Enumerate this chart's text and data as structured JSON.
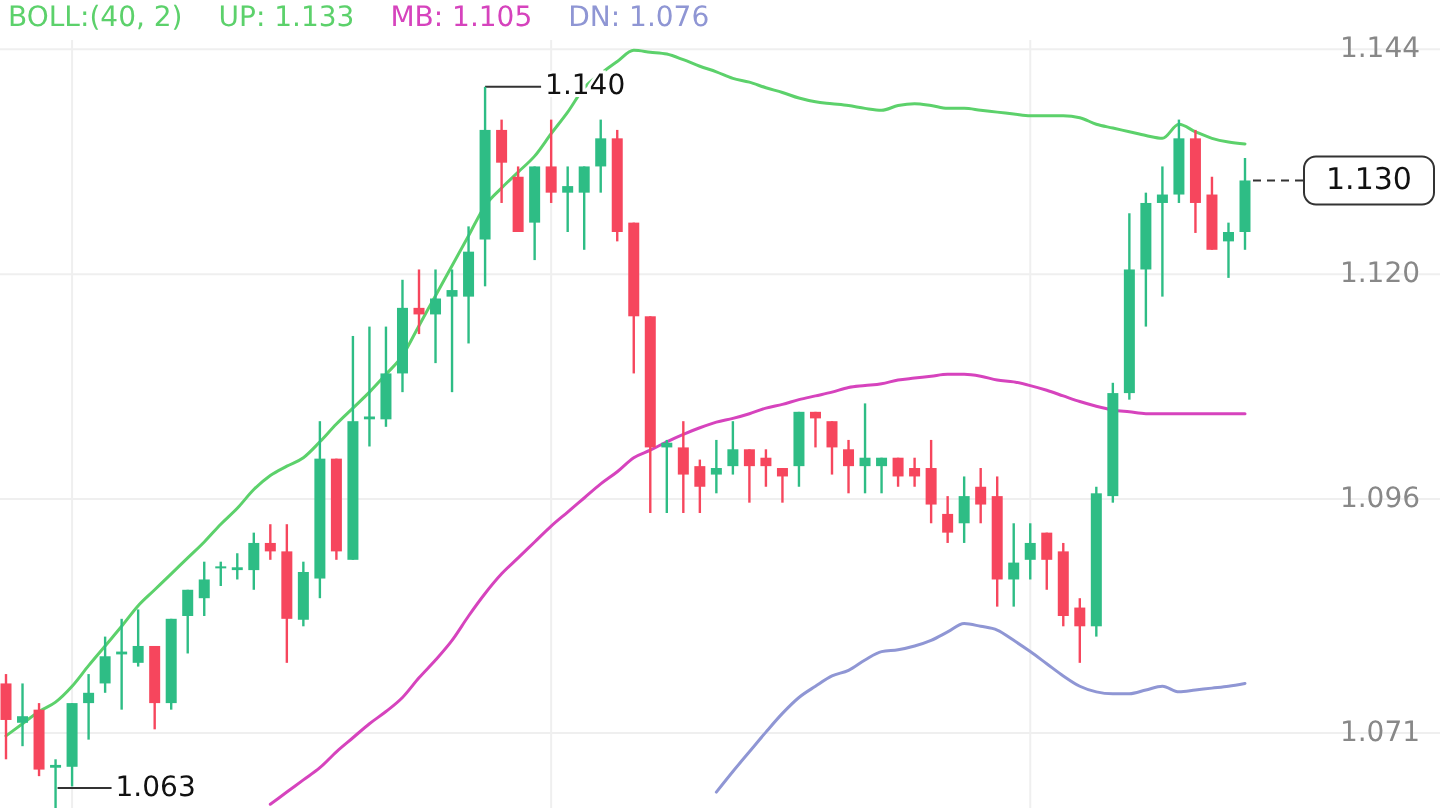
{
  "chart_data": {
    "type": "candlestick",
    "title": "BOLL:(40, 2)",
    "legend": "top",
    "grid": true,
    "tick_labels": "y",
    "categories": [
      null,
      null,
      null,
      null,
      null,
      null,
      null,
      null,
      null,
      null,
      null,
      null,
      null,
      null,
      null,
      null,
      null,
      null,
      null,
      null,
      null,
      null,
      null,
      null,
      null,
      null,
      null,
      null,
      null,
      null,
      null,
      null,
      null,
      null,
      null,
      null,
      null,
      null,
      null,
      null,
      null,
      null,
      null,
      null,
      null,
      null,
      null,
      null,
      null,
      null,
      null,
      null,
      null,
      null,
      null,
      null,
      null,
      null,
      null,
      null,
      null,
      null,
      null,
      null,
      null,
      null,
      null,
      null,
      null,
      null,
      null,
      null,
      null,
      null,
      null,
      null
    ],
    "ylim": [
      1.063,
      1.145
    ],
    "yticks": [
      1.144,
      {
        "value": 1.12,
        "label": "1.120"
      },
      1.096,
      1.071
    ],
    "ohlc": [
      [
        1.0763,
        1.0773,
        1.0682,
        1.0724
      ],
      [
        1.0721,
        1.0763,
        1.0696,
        1.0728
      ],
      [
        1.0735,
        1.0742,
        1.0664,
        1.0671
      ],
      [
        1.0673,
        1.0682,
        1.063,
        1.0676
      ],
      [
        1.0674,
        1.0742,
        1.0653,
        1.0742
      ],
      [
        1.0742,
        1.0773,
        1.0703,
        1.0753
      ],
      [
        1.0763,
        1.0813,
        1.0753,
        1.0792
      ],
      [
        1.0794,
        1.0832,
        1.0735,
        1.0797
      ],
      [
        1.0785,
        1.0842,
        1.0781,
        1.0803
      ],
      [
        1.0803,
        1.0803,
        1.0714,
        1.0742
      ],
      [
        1.0742,
        1.0832,
        1.0735,
        1.0832
      ],
      [
        1.0835,
        1.0863,
        1.0795,
        1.0863
      ],
      [
        1.0854,
        1.0893,
        1.0835,
        1.0874
      ],
      [
        1.0886,
        1.0893,
        1.0867,
        1.0888
      ],
      [
        1.0884,
        1.0902,
        1.0874,
        1.0887
      ],
      [
        1.0884,
        1.0924,
        1.0863,
        1.0913
      ],
      [
        1.0913,
        1.0933,
        1.0895,
        1.0904
      ],
      [
        1.0904,
        1.0933,
        1.0785,
        1.0832
      ],
      [
        1.0831,
        1.0893,
        1.0824,
        1.0882
      ],
      [
        1.0875,
        1.1043,
        1.0854,
        1.1003
      ],
      [
        1.1003,
        1.1003,
        1.0895,
        1.0904
      ],
      [
        1.0895,
        1.1134,
        1.0895,
        1.1043
      ],
      [
        1.1045,
        1.1144,
        1.1016,
        1.1048
      ],
      [
        1.1045,
        1.1144,
        1.1037,
        1.1094
      ],
      [
        1.1094,
        1.1194,
        1.1074,
        1.1164
      ],
      [
        1.1164,
        1.1205,
        1.1136,
        1.1157
      ],
      [
        1.1157,
        1.1205,
        1.1105,
        1.1174
      ],
      [
        1.1176,
        1.1205,
        1.1074,
        1.1183
      ],
      [
        1.1176,
        1.1251,
        1.1126,
        1.1224
      ],
      [
        1.1237,
        1.14,
        1.1187,
        1.1354
      ],
      [
        1.1354,
        1.1365,
        1.1276,
        1.1319
      ],
      [
        1.1304,
        1.1315,
        1.1245,
        1.1245
      ],
      [
        1.1255,
        1.1315,
        1.1215,
        1.1315
      ],
      [
        1.1315,
        1.1365,
        1.1276,
        1.1287
      ],
      [
        1.1287,
        1.1315,
        1.1245,
        1.1294
      ],
      [
        1.1287,
        1.1315,
        1.1226,
        1.1315
      ],
      [
        1.1315,
        1.1365,
        1.1287,
        1.1345
      ],
      [
        1.1345,
        1.1354,
        1.1235,
        1.1245
      ],
      [
        1.1255,
        1.1255,
        1.1094,
        1.1155
      ],
      [
        1.1155,
        1.1155,
        1.0945,
        1.1015
      ],
      [
        1.1015,
        1.1023,
        1.0945,
        1.102
      ],
      [
        1.1015,
        1.1043,
        1.0945,
        1.0986
      ],
      [
        1.0995,
        1.1002,
        1.0945,
        1.0973
      ],
      [
        1.0986,
        1.1023,
        1.0966,
        1.0993
      ],
      [
        1.0995,
        1.1043,
        1.0986,
        1.1013
      ],
      [
        1.1013,
        1.1013,
        1.0956,
        1.0995
      ],
      [
        1.1004,
        1.1013,
        1.0973,
        1.0995
      ],
      [
        1.0993,
        1.0993,
        1.0956,
        1.0984
      ],
      [
        1.0995,
        1.1053,
        1.0973,
        1.1053
      ],
      [
        1.1053,
        1.1053,
        1.1015,
        1.1046
      ],
      [
        1.1043,
        1.1043,
        1.0986,
        1.1015
      ],
      [
        1.1013,
        1.1023,
        1.0966,
        1.0995
      ],
      [
        1.0995,
        1.1062,
        1.0966,
        1.1004
      ],
      [
        1.0995,
        1.1004,
        1.0966,
        1.1004
      ],
      [
        1.1004,
        1.1004,
        1.0973,
        1.0984
      ],
      [
        1.0993,
        1.1004,
        1.0973,
        1.0984
      ],
      [
        1.0993,
        1.1023,
        1.0934,
        1.0954
      ],
      [
        1.0944,
        1.0963,
        1.0913,
        1.0924
      ],
      [
        1.0934,
        1.0984,
        1.0913,
        1.0963
      ],
      [
        1.0973,
        1.0993,
        1.0934,
        1.0954
      ],
      [
        1.0963,
        1.0984,
        1.0845,
        1.0874
      ],
      [
        1.0874,
        1.0934,
        1.0845,
        1.0892
      ],
      [
        1.0895,
        1.0934,
        1.0874,
        1.0913
      ],
      [
        1.0924,
        1.0924,
        1.0863,
        1.0895
      ],
      [
        1.0904,
        1.0913,
        1.0824,
        1.0835
      ],
      [
        1.0844,
        1.0854,
        1.0785,
        1.0824
      ],
      [
        1.0824,
        1.0973,
        1.0813,
        1.0966
      ],
      [
        1.0963,
        1.1084,
        1.0956,
        1.1073
      ],
      [
        1.1073,
        1.1265,
        1.1066,
        1.1205
      ],
      [
        1.1205,
        1.1287,
        1.1144,
        1.1276
      ],
      [
        1.1276,
        1.1315,
        1.1176,
        1.1285
      ],
      [
        1.1285,
        1.1365,
        1.1276,
        1.1345
      ],
      [
        1.1345,
        1.1354,
        1.1244,
        1.1276
      ],
      [
        1.1285,
        1.1304,
        1.1226,
        1.1226
      ],
      [
        1.1235,
        1.1255,
        1.1196,
        1.1245
      ],
      [
        1.1245,
        1.1324,
        1.1226,
        1.13
      ]
    ],
    "series": [
      {
        "type": "line",
        "name": "UP: 1.133",
        "color": "#5cd16b",
        "values": [
          1.0707,
          1.072,
          1.0733,
          1.0743,
          1.076,
          1.0782,
          1.0803,
          1.0824,
          1.0846,
          1.0863,
          1.088,
          1.0897,
          1.0914,
          1.0933,
          1.095,
          1.097,
          1.0985,
          1.0995,
          1.1004,
          1.1021,
          1.104,
          1.1057,
          1.1074,
          1.1093,
          1.1113,
          1.1145,
          1.1177,
          1.1209,
          1.1241,
          1.1273,
          1.1292,
          1.1309,
          1.1326,
          1.135,
          1.1373,
          1.1399,
          1.1414,
          1.1427,
          1.1439,
          1.1437,
          1.1435,
          1.1429,
          1.1422,
          1.1416,
          1.1409,
          1.1405,
          1.1399,
          1.1394,
          1.1388,
          1.1384,
          1.1382,
          1.138,
          1.1377,
          1.1375,
          1.138,
          1.1382,
          1.138,
          1.1377,
          1.1377,
          1.1375,
          1.1373,
          1.1371,
          1.1369,
          1.1369,
          1.1369,
          1.1367,
          1.136,
          1.1356,
          1.1352,
          1.1348,
          1.1345,
          1.136,
          1.1352,
          1.1345,
          1.1341,
          1.1339
        ]
      },
      {
        "type": "line",
        "name": "MB: 1.105",
        "color": "#d643bd",
        "values": [
          null,
          null,
          null,
          null,
          null,
          null,
          null,
          null,
          null,
          null,
          null,
          null,
          null,
          null,
          null,
          null,
          1.0634,
          1.0647,
          1.066,
          1.0673,
          1.069,
          1.0705,
          1.072,
          1.0733,
          1.0748,
          1.0769,
          1.0788,
          1.0809,
          1.0835,
          1.0859,
          1.088,
          1.0897,
          1.0914,
          1.0931,
          1.0946,
          1.0961,
          1.0976,
          1.0989,
          1.1004,
          1.1012,
          1.1021,
          1.1029,
          1.1036,
          1.1042,
          1.1046,
          1.1051,
          1.1057,
          1.1061,
          1.1066,
          1.107,
          1.1074,
          1.1079,
          1.1081,
          1.1083,
          1.1087,
          1.1089,
          1.1091,
          1.1093,
          1.1093,
          1.1091,
          1.1087,
          1.1085,
          1.1081,
          1.1076,
          1.107,
          1.1064,
          1.1059,
          1.1055,
          1.1053,
          1.1051,
          1.1051,
          1.1051,
          1.1051,
          1.1051,
          1.1051,
          1.1051
        ]
      },
      {
        "type": "line",
        "name": "DN: 1.076",
        "color": "#8f96d4",
        "values": [
          null,
          null,
          null,
          null,
          null,
          null,
          null,
          null,
          null,
          null,
          null,
          null,
          null,
          null,
          null,
          null,
          null,
          null,
          null,
          null,
          null,
          null,
          null,
          null,
          null,
          null,
          null,
          null,
          null,
          null,
          null,
          null,
          null,
          null,
          null,
          null,
          null,
          null,
          null,
          null,
          null,
          null,
          null,
          1.0647,
          1.0669,
          1.069,
          1.0711,
          1.0731,
          1.0748,
          1.076,
          1.0771,
          1.0777,
          1.0788,
          1.0797,
          1.0799,
          1.0803,
          1.0809,
          1.0818,
          1.0827,
          1.0824,
          1.082,
          1.0809,
          1.0797,
          1.0784,
          1.0771,
          1.076,
          1.0754,
          1.0752,
          1.0752,
          1.0756,
          1.076,
          1.0754,
          1.0756,
          1.0758,
          1.076,
          1.0763
        ]
      }
    ],
    "ref_lines": [
      {
        "axis": "y",
        "value": 1.13,
        "label": "1.130",
        "line_style": "dashed"
      }
    ],
    "annotations": [
      {
        "text": "1.140",
        "y": 1.14
      },
      "1.063"
    ]
  }
}
